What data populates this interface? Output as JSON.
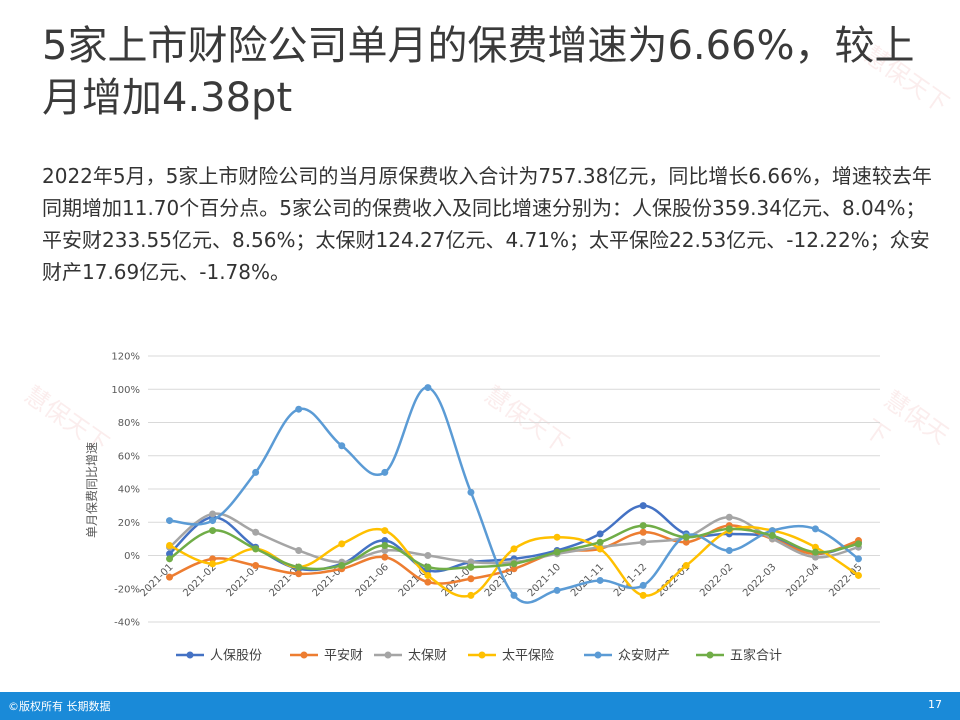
{
  "slide": {
    "title": "5家上市财险公司单月的保费增速为6.66%，较上月增加4.38pt",
    "body": "2022年5月，5家上市财险公司的当月原保费收入合计为757.38亿元，同比增长6.66%，增速较去年同期增加11.70个百分点。5家公司的保费收入及同比增速分别为：人保股份359.34亿元、8.04%；平安财233.55亿元、8.56%；太保财124.27亿元、4.71%；太平保险22.53亿元、-12.22%；众安财产17.69亿元、-1.78%。"
  },
  "watermark": {
    "text": "慧保天下"
  },
  "footer": {
    "copyright": "©版权所有 长期数据",
    "page_number": "17"
  },
  "chart_data": {
    "type": "line",
    "ylabel": "单月保费同比增速",
    "x": [
      "2021-01",
      "2021-02",
      "2021-03",
      "2021-04",
      "2021-05",
      "2021-06",
      "2021-07",
      "2021-08",
      "2021-09",
      "2021-10",
      "2021-11",
      "2021-12",
      "2022-01",
      "2022-02",
      "2022-03",
      "2022-04",
      "2022-05"
    ],
    "x_tick_labels": [
      "2021-01",
      "2021-02",
      "2021-03",
      "2021-04",
      "2021-05",
      "2021-06",
      "2021-07",
      "2021-08",
      "2021-09",
      "2021-10",
      "2021-11",
      "2021-12",
      "2022-01",
      "2022-02",
      "2022-03",
      "2022-04",
      "2022-05"
    ],
    "ylim": [
      -40,
      120
    ],
    "y_ticks": [
      -40,
      -20,
      0,
      20,
      40,
      60,
      80,
      100,
      120
    ],
    "y_tick_labels": [
      "-40%",
      "-20%",
      "0%",
      "20%",
      "40%",
      "60%",
      "80%",
      "100%",
      "120%"
    ],
    "grid": "horizontal",
    "legend_position": "bottom",
    "series": [
      {
        "name": "人保股份",
        "color": "#4472c4",
        "values": [
          1,
          23,
          5,
          -8,
          -5,
          9,
          -9,
          -4,
          -2,
          3,
          13,
          30,
          13,
          13,
          11,
          1,
          8
        ]
      },
      {
        "name": "平安财",
        "color": "#ed7d31",
        "values": [
          -13,
          -2,
          -6,
          -11,
          -8,
          -1,
          -16,
          -14,
          -8,
          2,
          4,
          14,
          8,
          18,
          10,
          1,
          9
        ]
      },
      {
        "name": "太保财",
        "color": "#a5a5a5",
        "values": [
          5,
          25,
          14,
          3,
          -4,
          3,
          0,
          -4,
          -4,
          1,
          5,
          8,
          11,
          23,
          10,
          -1,
          5
        ]
      },
      {
        "name": "太平保险",
        "color": "#ffc000",
        "values": [
          6,
          -5,
          4,
          -7,
          7,
          15,
          -12,
          -24,
          4,
          11,
          4,
          -24,
          -6,
          15,
          15,
          5,
          -12
        ]
      },
      {
        "name": "众安财产",
        "color": "#5b9bd5",
        "values": [
          21,
          21,
          50,
          88,
          66,
          50,
          101,
          38,
          -24,
          -21,
          -15,
          -18,
          12,
          3,
          15,
          16,
          -2
        ]
      },
      {
        "name": "五家合计",
        "color": "#70ad47",
        "values": [
          -2,
          15,
          4,
          -7,
          -6,
          6,
          -7,
          -7,
          -5,
          2,
          8,
          18,
          11,
          16,
          12,
          2,
          7
        ]
      }
    ]
  }
}
